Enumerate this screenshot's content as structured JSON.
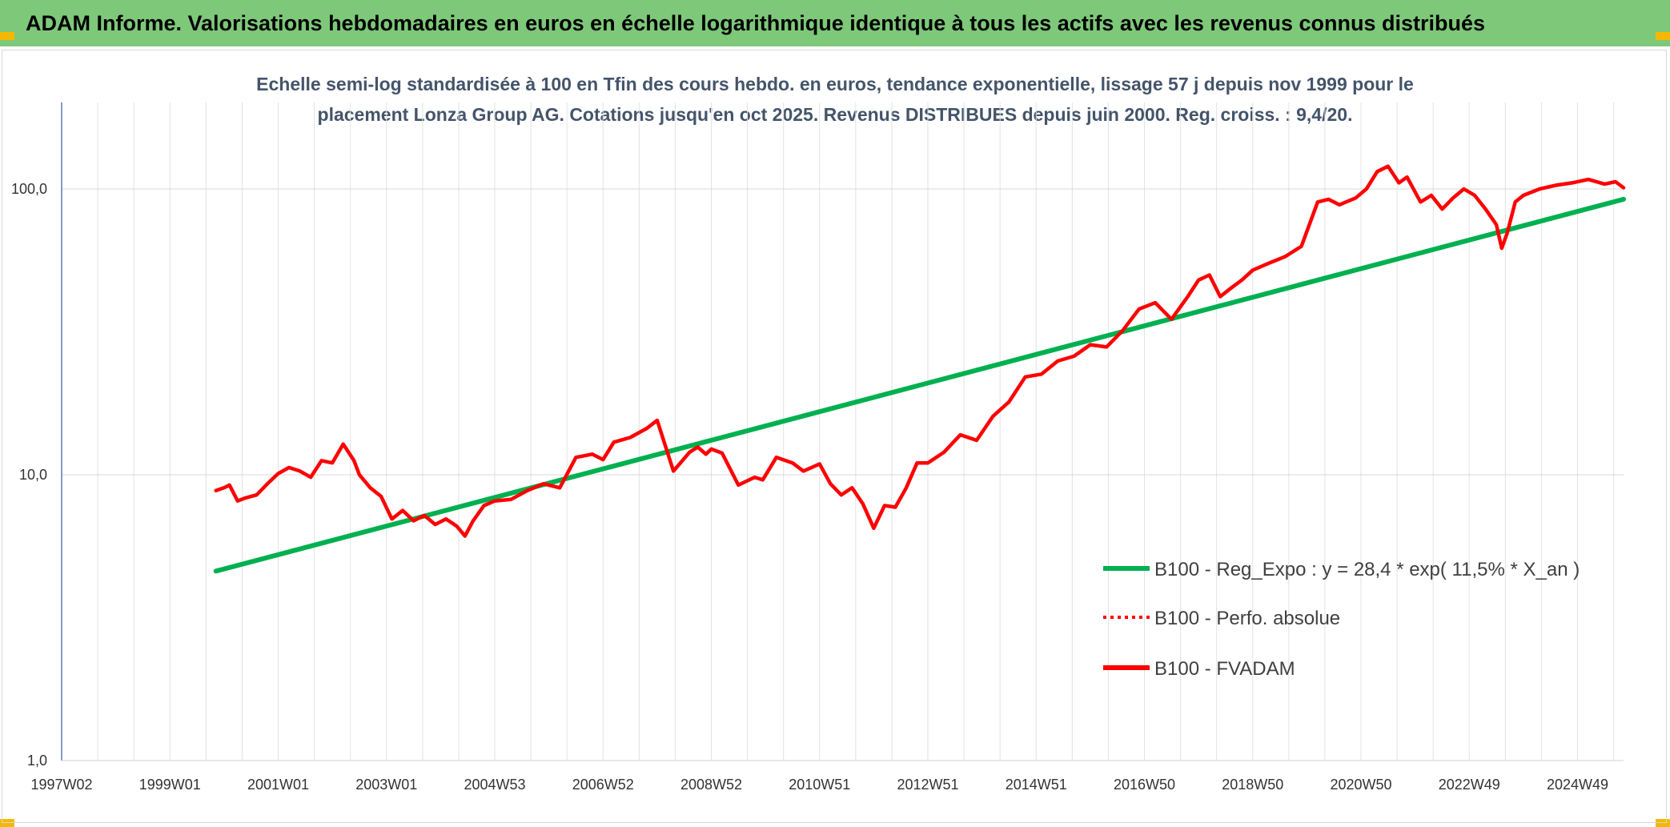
{
  "banner": {
    "title": "ADAM Informe. Valorisations hebdomadaires en euros en échelle logarithmique identique à tous les actifs avec les revenus connus distribués"
  },
  "chart_data": {
    "type": "line",
    "title_line1": "Echelle semi-log standardisée à 100 en Tfin des cours hebdo. en euros, tendance exponentielle, lissage 57 j depuis nov 1999 pour le",
    "title_line2": "placement Lonza Group AG. Cotations jusqu'en oct 2025. Revenus DISTRIBUES depuis juin 2000. Reg. croiss. : 9,4/20.",
    "y_scale": "log",
    "ylim": [
      1,
      180
    ],
    "y_ticks": [
      {
        "value": 1,
        "label": "1,0"
      },
      {
        "value": 10,
        "label": "10,0"
      },
      {
        "value": 100,
        "label": "100,0"
      }
    ],
    "xlim": [
      1997.0,
      2025.85
    ],
    "x_ticks": [
      {
        "year": 1997.0,
        "label": "1997W02"
      },
      {
        "year": 1999.0,
        "label": "1999W01"
      },
      {
        "year": 2001.0,
        "label": "2001W01"
      },
      {
        "year": 2003.0,
        "label": "2003W01"
      },
      {
        "year": 2005.0,
        "label": "2004W53"
      },
      {
        "year": 2007.0,
        "label": "2006W52"
      },
      {
        "year": 2009.0,
        "label": "2008W52"
      },
      {
        "year": 2011.0,
        "label": "2010W51"
      },
      {
        "year": 2013.0,
        "label": "2012W51"
      },
      {
        "year": 2015.0,
        "label": "2014W51"
      },
      {
        "year": 2017.0,
        "label": "2016W50"
      },
      {
        "year": 2019.0,
        "label": "2018W50"
      },
      {
        "year": 2021.0,
        "label": "2020W50"
      },
      {
        "year": 2023.0,
        "label": "2022W49"
      },
      {
        "year": 2025.0,
        "label": "2024W49"
      }
    ],
    "grid": true,
    "legend_position": "bottom-right",
    "series": [
      {
        "name": "B100 - Reg_Expo : y = 28,4 * exp( 11,5% *  X_an )",
        "color": "#00b050",
        "style": "solid",
        "x": [
          1999.85,
          2025.85
        ],
        "y": [
          4.6,
          92.0
        ]
      },
      {
        "name": "B100 - Perfo. absolue",
        "color": "#ff0000",
        "style": "dotted",
        "x": [],
        "y": []
      },
      {
        "name": "B100 - FVADAM",
        "color": "#ff0000",
        "style": "solid",
        "x": [
          1999.85,
          2000.0,
          2000.1,
          2000.25,
          2000.4,
          2000.6,
          2000.8,
          2001.0,
          2001.2,
          2001.4,
          2001.6,
          2001.8,
          2002.0,
          2002.2,
          2002.4,
          2002.5,
          2002.7,
          2002.9,
          2003.1,
          2003.3,
          2003.5,
          2003.7,
          2003.9,
          2004.1,
          2004.3,
          2004.45,
          2004.6,
          2004.8,
          2005.0,
          2005.3,
          2005.6,
          2005.9,
          2006.2,
          2006.5,
          2006.8,
          2007.0,
          2007.2,
          2007.5,
          2007.8,
          2008.0,
          2008.3,
          2008.6,
          2008.75,
          2008.9,
          2009.0,
          2009.2,
          2009.5,
          2009.8,
          2009.95,
          2010.2,
          2010.5,
          2010.7,
          2011.0,
          2011.2,
          2011.4,
          2011.6,
          2011.8,
          2012.0,
          2012.2,
          2012.4,
          2012.6,
          2012.8,
          2013.0,
          2013.3,
          2013.6,
          2013.9,
          2014.2,
          2014.5,
          2014.8,
          2015.1,
          2015.4,
          2015.7,
          2016.0,
          2016.3,
          2016.6,
          2016.9,
          2017.2,
          2017.5,
          2017.8,
          2018.0,
          2018.2,
          2018.4,
          2018.6,
          2018.8,
          2019.0,
          2019.3,
          2019.6,
          2019.9,
          2020.2,
          2020.4,
          2020.6,
          2020.9,
          2021.1,
          2021.3,
          2021.5,
          2021.7,
          2021.85,
          2022.1,
          2022.3,
          2022.5,
          2022.7,
          2022.9,
          2023.1,
          2023.3,
          2023.5,
          2023.6,
          2023.7,
          2023.85,
          2024.0,
          2024.3,
          2024.6,
          2024.9,
          2025.2,
          2025.5,
          2025.7,
          2025.85
        ],
        "y": [
          8.8,
          9.0,
          9.2,
          8.1,
          8.3,
          8.5,
          9.3,
          10.1,
          10.6,
          10.3,
          9.8,
          11.2,
          11.0,
          12.8,
          11.2,
          10.0,
          9.0,
          8.4,
          7.0,
          7.5,
          6.9,
          7.2,
          6.7,
          7.0,
          6.6,
          6.1,
          6.9,
          7.8,
          8.1,
          8.2,
          8.8,
          9.3,
          9.0,
          11.5,
          11.8,
          11.3,
          13.0,
          13.5,
          14.5,
          15.5,
          10.3,
          12.0,
          12.5,
          11.8,
          12.3,
          11.9,
          9.2,
          9.8,
          9.6,
          11.5,
          11.0,
          10.3,
          10.9,
          9.3,
          8.5,
          9.0,
          7.9,
          6.5,
          7.8,
          7.7,
          9.0,
          11.0,
          11.0,
          12.0,
          13.8,
          13.2,
          16.0,
          18.0,
          22.0,
          22.5,
          25.0,
          26.0,
          28.5,
          28.0,
          32.0,
          38.0,
          40.0,
          35.0,
          42.0,
          48.0,
          50.0,
          42.0,
          45.0,
          48.0,
          52.0,
          55.0,
          58.0,
          63.0,
          90.0,
          92.0,
          88.0,
          93.0,
          100.0,
          115.0,
          120.0,
          105.0,
          110.0,
          90.0,
          95.0,
          85.0,
          93.0,
          100.0,
          95.0,
          85.0,
          75.0,
          62.0,
          70.0,
          90.0,
          95.0,
          100.0,
          103.0,
          105.0,
          108.0,
          104.0,
          106.0,
          101.0
        ]
      }
    ]
  }
}
